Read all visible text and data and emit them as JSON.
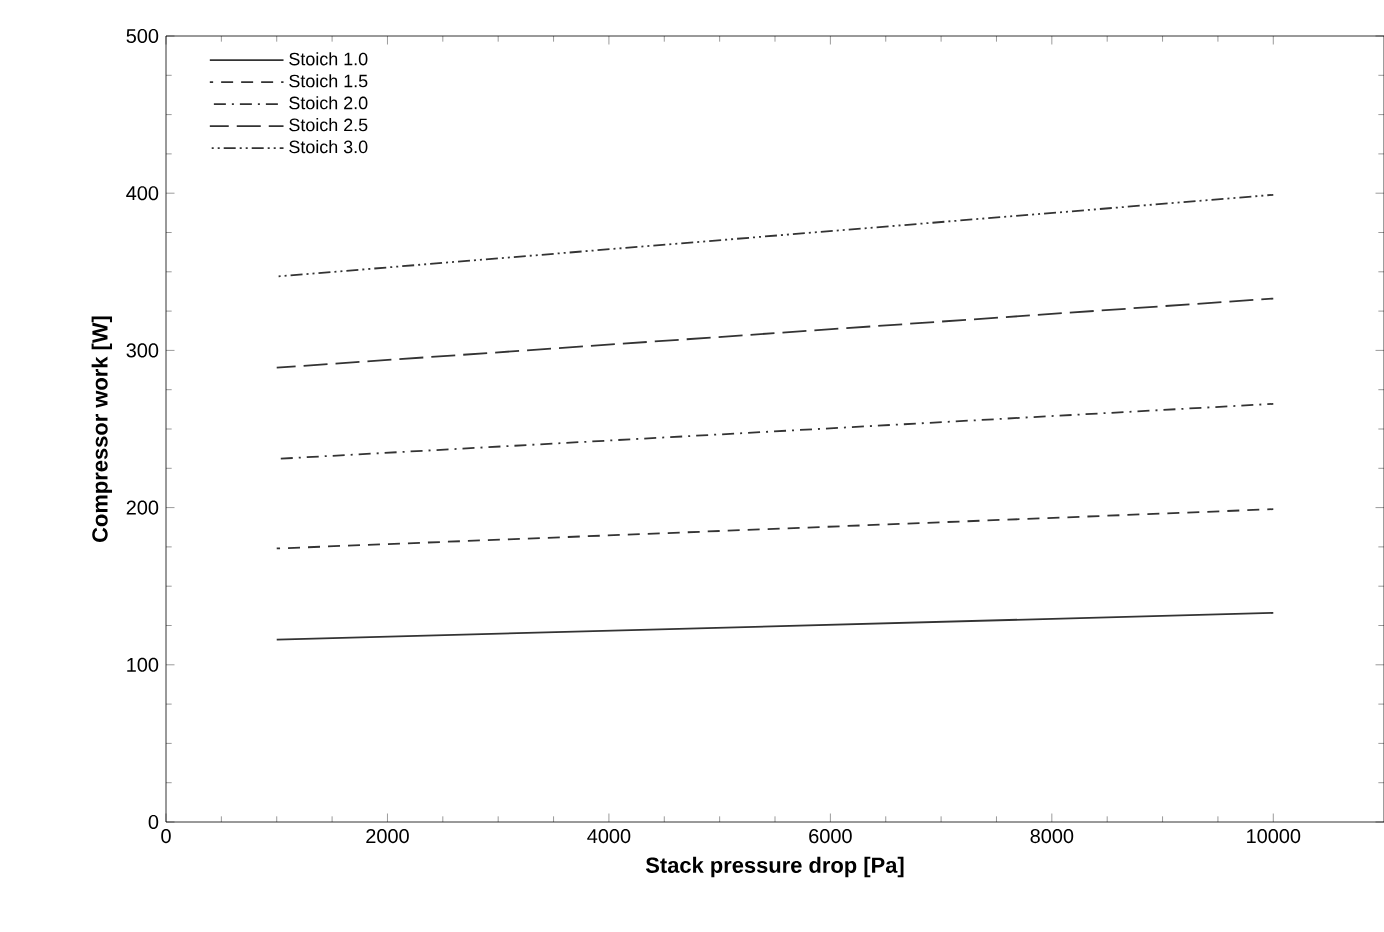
{
  "chart_data": {
    "type": "line",
    "xlabel": "Stack pressure drop [Pa]",
    "ylabel": "Compressor work [W]",
    "xlim": [
      0,
      11000
    ],
    "xticks": [
      0,
      2000,
      4000,
      6000,
      8000,
      10000
    ],
    "ylim": [
      0,
      500
    ],
    "yticks": [
      0,
      100,
      200,
      300,
      400,
      500
    ],
    "x": [
      1000,
      10000
    ],
    "legend": "top left",
    "grid": false,
    "marker": "none",
    "series": [
      {
        "name": "Stoich 1.0",
        "color": "#333333",
        "line_style": "solid",
        "values": [
          116,
          133
        ]
      },
      {
        "name": "Stoich 1.5",
        "color": "#333333",
        "line_style": "dashed",
        "values": [
          174,
          199
        ]
      },
      {
        "name": "Stoich 2.0",
        "color": "#333333",
        "line_style": "dashdot",
        "values": [
          231,
          266
        ]
      },
      {
        "name": "Stoich 2.5",
        "color": "#333333",
        "line_style": "longdash",
        "values": [
          289,
          333
        ]
      },
      {
        "name": "Stoich 3.0",
        "color": "#333333",
        "line_style": "dashdotdot",
        "values": [
          347,
          399
        ]
      }
    ]
  }
}
